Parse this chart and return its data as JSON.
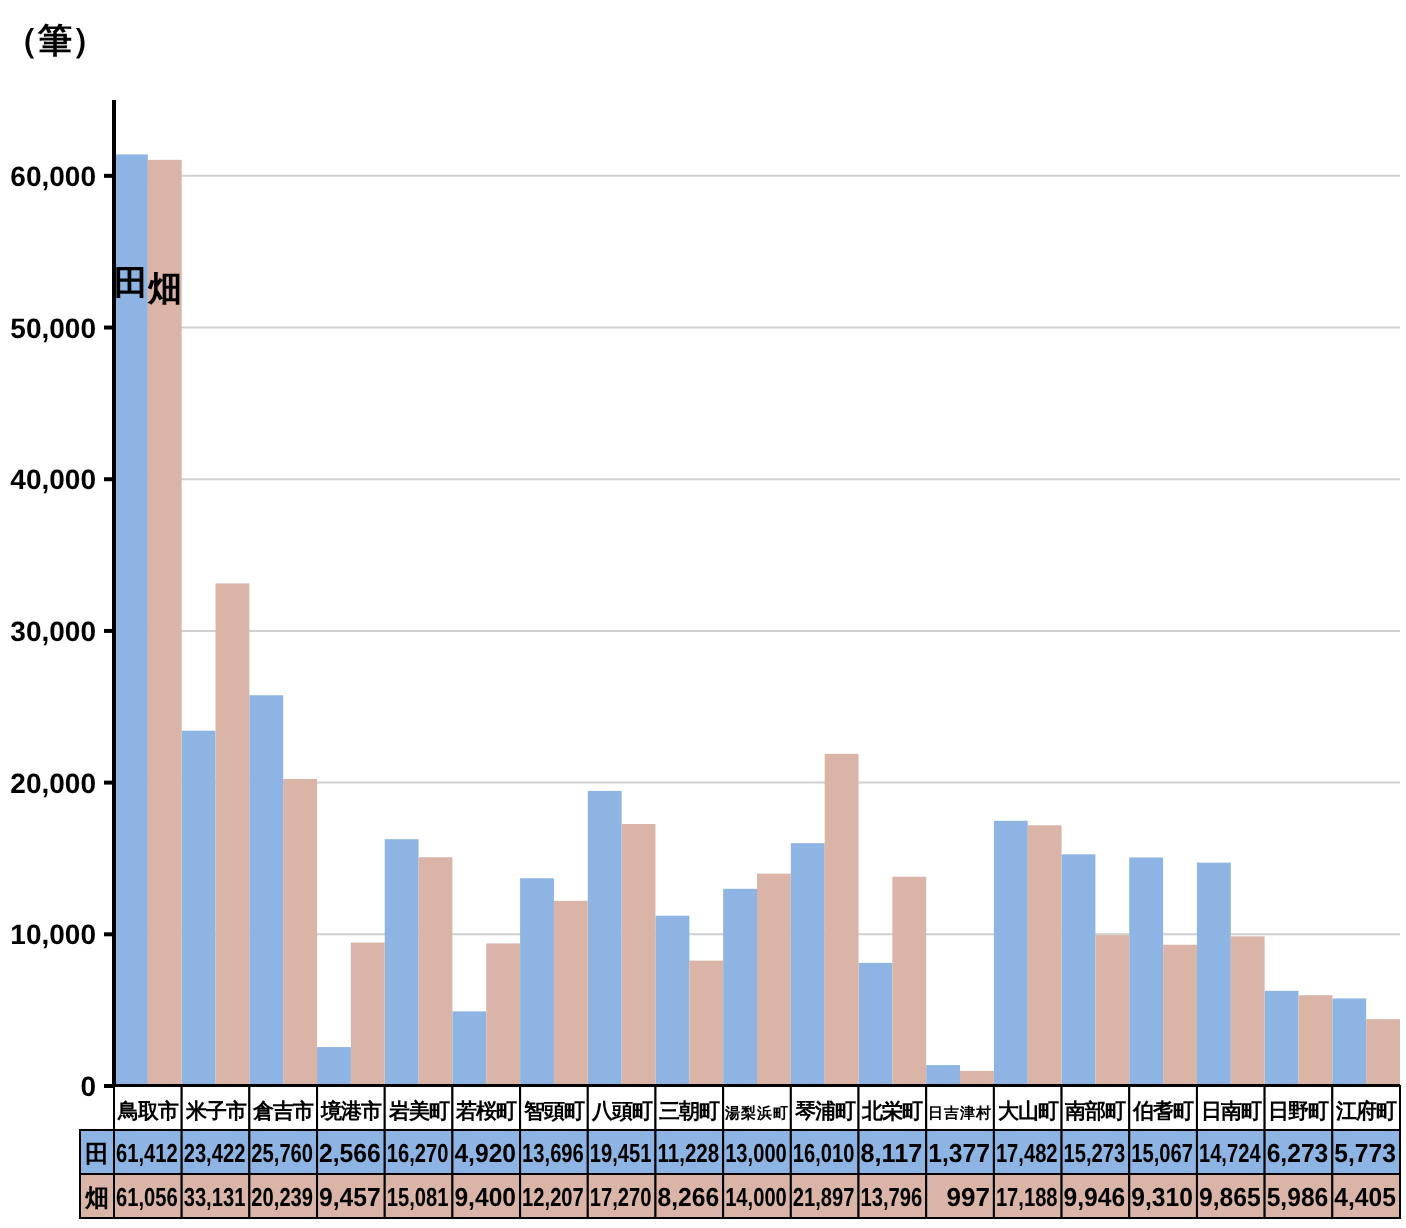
{
  "chart_data": {
    "type": "bar",
    "ylabel": "（筆）",
    "categories": [
      "鳥取市",
      "米子市",
      "倉吉市",
      "境港市",
      "岩美町",
      "若桜町",
      "智頭町",
      "八頭町",
      "三朝町",
      "湯梨浜町",
      "琴浦町",
      "北栄町",
      "日吉津村",
      "大山町",
      "南部町",
      "伯耆町",
      "日南町",
      "日野町",
      "江府町"
    ],
    "series": [
      {
        "name": "田",
        "color": "#8db4e2",
        "values": [
          61412,
          23422,
          25760,
          2566,
          16270,
          4920,
          13696,
          19451,
          11228,
          13000,
          16010,
          8117,
          1377,
          17482,
          15273,
          15067,
          14724,
          6273,
          5773
        ],
        "value_labels": [
          "61,412",
          "23,422",
          "25,760",
          "2,566",
          "16,270",
          "4,920",
          "13,696",
          "19,451",
          "11,228",
          "13,000",
          "16,010",
          "8,117",
          "1,377",
          "17,482",
          "15,273",
          "15,067",
          "14,724",
          "6,273",
          "5,773"
        ]
      },
      {
        "name": "畑",
        "color": "#d9b4a7",
        "values": [
          61056,
          33131,
          20239,
          9457,
          15081,
          9400,
          12207,
          17270,
          8266,
          14000,
          21897,
          13796,
          997,
          17188,
          9946,
          9310,
          9865,
          5986,
          4405
        ],
        "value_labels": [
          "61,056",
          "33,131",
          "20,239",
          "9,457",
          "15,081",
          "9,400",
          "12,207",
          "17,270",
          "8,266",
          "14,000",
          "21,897",
          "13,796",
          "997",
          "17,188",
          "9,946",
          "9,310",
          "9,865",
          "5,986",
          "4,405"
        ]
      }
    ],
    "ylim": [
      0,
      65000
    ],
    "yticks": [
      0,
      {
        "value": 10000,
        "label": "10,000"
      },
      {
        "value": 20000,
        "label": "20,000"
      },
      {
        "value": 30000,
        "label": "30,000"
      },
      {
        "value": 40000,
        "label": "40,000"
      },
      {
        "value": 50000,
        "label": "50,000"
      },
      {
        "value": 60000,
        "label": "60,000"
      }
    ],
    "grid": "y",
    "legend": "bottom"
  }
}
